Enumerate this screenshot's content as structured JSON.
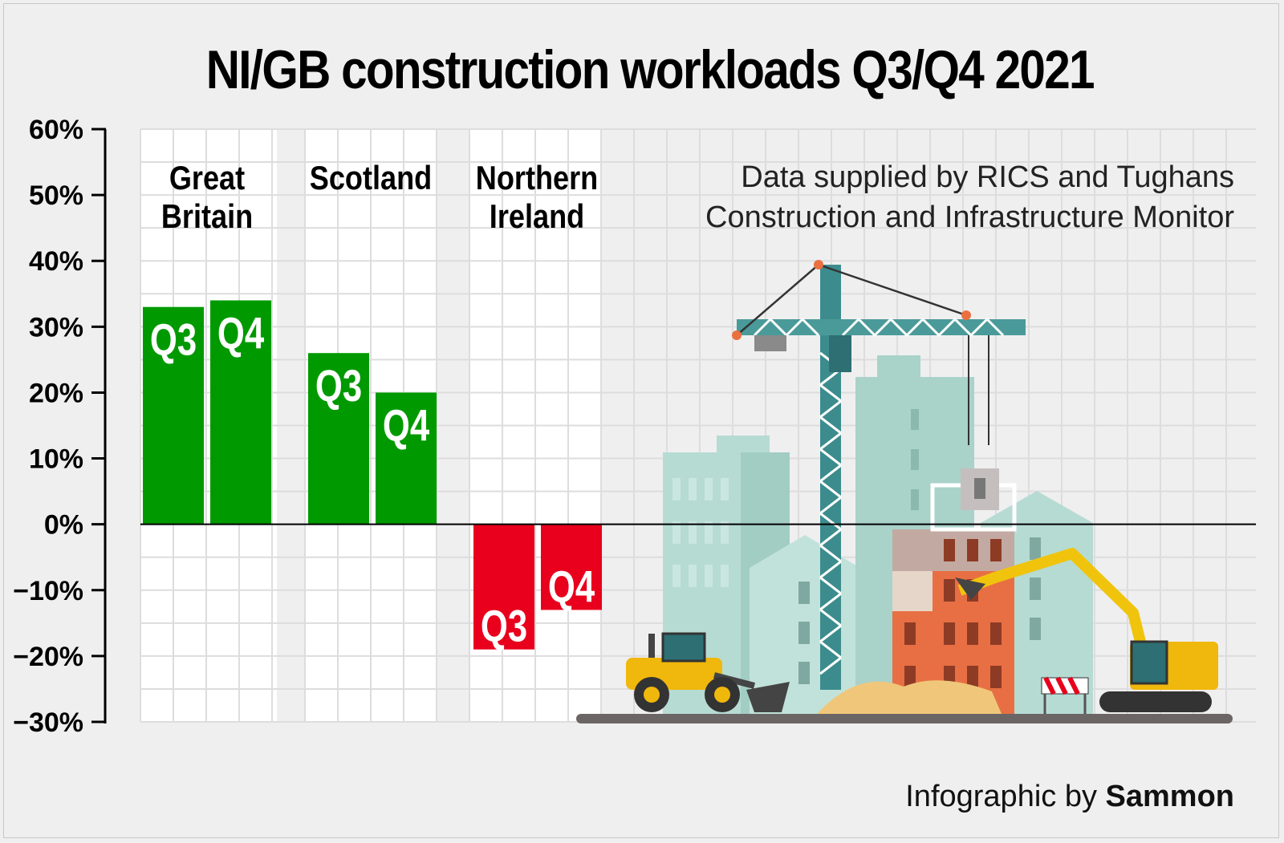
{
  "title": "NI/GB construction workloads Q3/Q4 2021",
  "source_line1": "Data supplied by RICS and Tughans",
  "source_line2": "Construction and Infrastructure Monitor",
  "credit_prefix": "Infographic by ",
  "credit_name": "Sammon",
  "colors": {
    "positive": "#009a00",
    "negative": "#e8001c",
    "background": "#efefef"
  },
  "illustration": "construction-site-illustration",
  "chart_data": {
    "type": "bar",
    "categories": [
      "Great Britain",
      "Scotland",
      "Northern Ireland"
    ],
    "category_label_lines": [
      [
        "Great",
        "Britain"
      ],
      [
        "Scotland"
      ],
      [
        "Northern",
        "Ireland"
      ]
    ],
    "series": [
      {
        "name": "Q3",
        "values": [
          33,
          26,
          -19
        ]
      },
      {
        "name": "Q4",
        "values": [
          34,
          20,
          -13
        ]
      }
    ],
    "ylim": [
      -30,
      60
    ],
    "yticks": [
      60,
      50,
      40,
      30,
      20,
      10,
      0,
      -10,
      -20,
      -30
    ],
    "ytick_labels": [
      "60%",
      "50%",
      "40%",
      "30%",
      "20%",
      "10%",
      "0%",
      "−10%",
      "−20%",
      "−30%"
    ],
    "grid": true,
    "title": "NI/GB construction workloads Q3/Q4 2021",
    "xlabel": "",
    "ylabel": ""
  }
}
